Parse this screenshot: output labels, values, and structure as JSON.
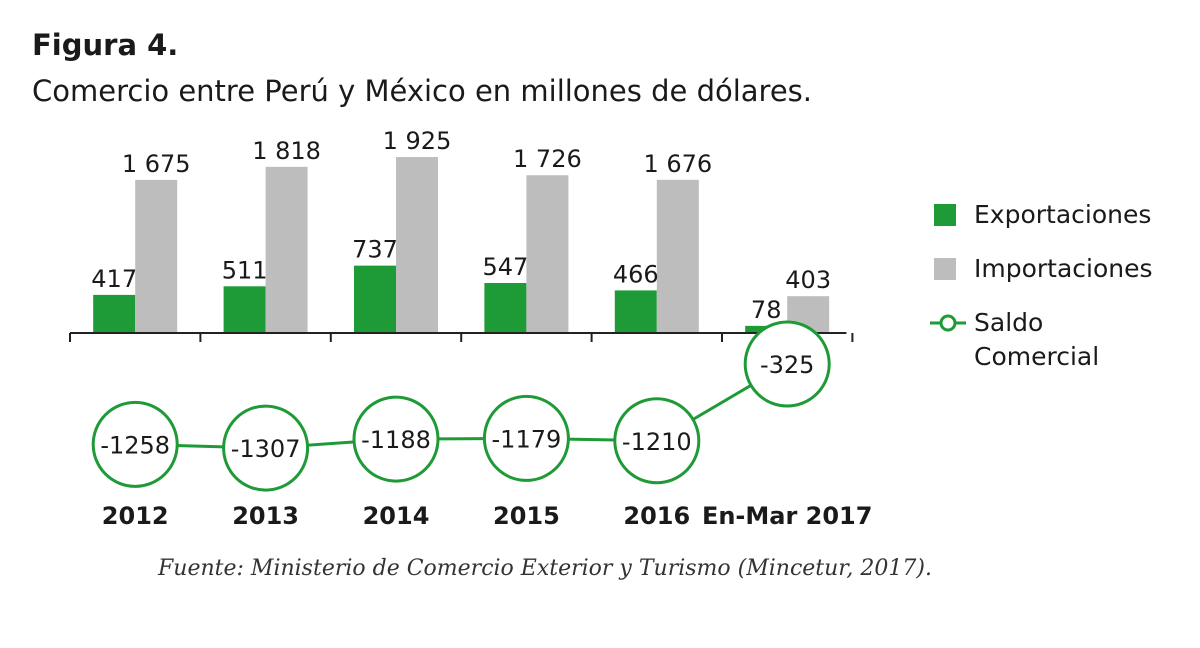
{
  "figure_label": "Figura 4.",
  "title": "Comercio entre Perú y México en millones de dólares.",
  "source": "Fuente: Ministerio de Comercio Exterior y Turismo (Mincetur, 2017).",
  "colors": {
    "exports": "#1e9a36",
    "imports": "#bdbdbd",
    "balance": "#1e9a36",
    "axis": "#222222"
  },
  "legend": {
    "exports": "Exportaciones",
    "imports": "Importaciones",
    "balance_line1": "Saldo",
    "balance_line2": "Comercial"
  },
  "chart_data": {
    "type": "bar",
    "categories": [
      "2012",
      "2013",
      "2014",
      "2015",
      "2016",
      "En-Mar 2017"
    ],
    "series": [
      {
        "name": "Exportaciones",
        "values": [
          417,
          511,
          737,
          547,
          466,
          78
        ],
        "labels": [
          "417",
          "511",
          "737",
          "547",
          "466",
          "78"
        ]
      },
      {
        "name": "Importaciones",
        "values": [
          1675,
          1818,
          1925,
          1726,
          1676,
          403
        ],
        "labels": [
          "1 675",
          "1 818",
          "1 925",
          "1 726",
          "1 676",
          "403"
        ]
      },
      {
        "name": "Saldo Comercial",
        "type": "line",
        "values": [
          -1258,
          -1307,
          -1188,
          -1179,
          -1210,
          -325
        ],
        "labels": [
          "-1258",
          "-1307",
          "-1188",
          "-1179",
          "-1210",
          "-325"
        ]
      }
    ],
    "ylim": [
      -1400,
      2000
    ],
    "grid": false,
    "legend_position": "right"
  }
}
